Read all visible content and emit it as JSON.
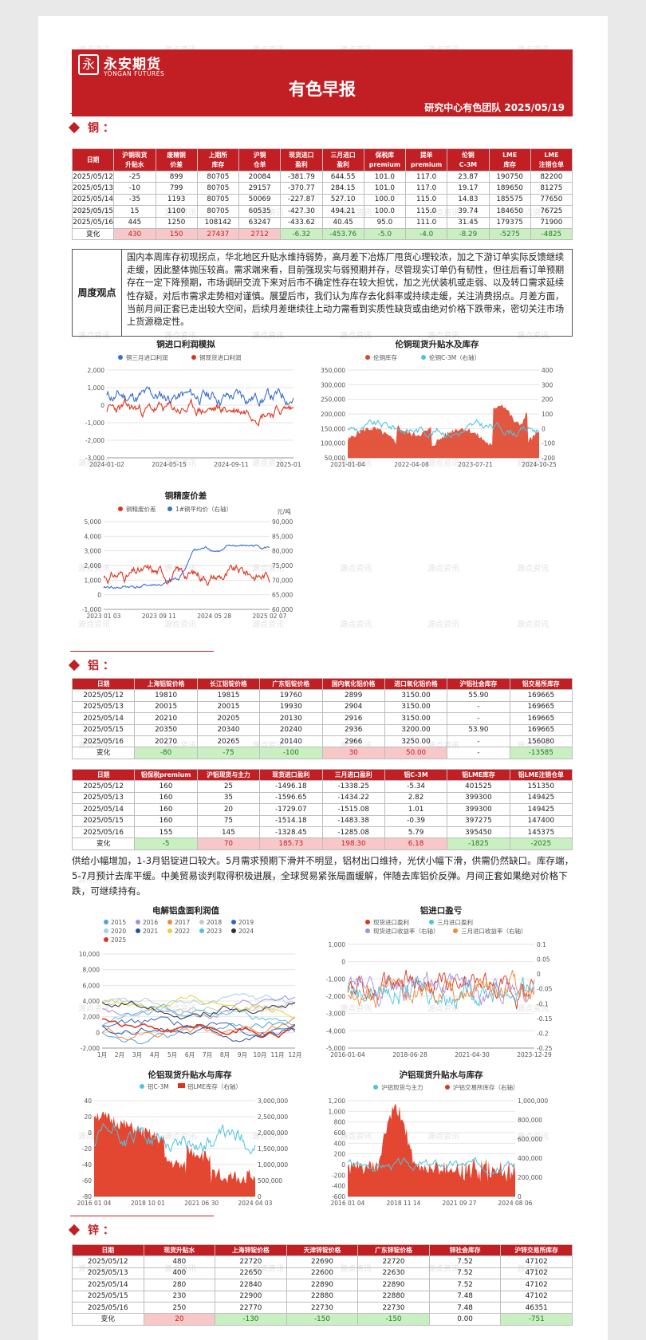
{
  "header": {
    "logo_cn": "永安期货",
    "logo_en": "YONGAN FUTURES",
    "title": "有色早报",
    "subtitle": "研究中心有色团队  2025/05/19"
  },
  "colors": {
    "brand_red": "#c21f24",
    "pos_bg": "#f8c8c8",
    "neg_bg": "#c9efc2"
  },
  "copper": {
    "section_title": "铜 ：",
    "headers": [
      "日期",
      "沪铜现货\n升贴水",
      "废精铜\n价差",
      "上期所\n库存",
      "沪铜\n仓单",
      "现货进口\n盈利",
      "三月进口\n盈利",
      "保税库\npremium",
      "提单\npremium",
      "伦铜\nC-3M",
      "LME\n库存",
      "LME\n注销仓单"
    ],
    "rows": [
      [
        "2025/05/12",
        "-25",
        "899",
        "80705",
        "20084",
        "-381.79",
        "644.55",
        "101.0",
        "117.0",
        "23.87",
        "190750",
        "82200"
      ],
      [
        "2025/05/13",
        "-10",
        "799",
        "80705",
        "29157",
        "-370.77",
        "284.15",
        "101.0",
        "117.0",
        "19.17",
        "189650",
        "81275"
      ],
      [
        "2025/05/14",
        "-35",
        "1193",
        "80705",
        "50069",
        "-227.87",
        "527.10",
        "100.0",
        "115.0",
        "14.83",
        "185575",
        "77650"
      ],
      [
        "2025/05/15",
        "15",
        "1100",
        "80705",
        "60535",
        "-427.30",
        "494.21",
        "100.0",
        "115.0",
        "39.74",
        "184650",
        "76725"
      ],
      [
        "2025/05/16",
        "445",
        "1250",
        "108142",
        "63247",
        "-433.62",
        "40.45",
        "95.0",
        "111.0",
        "31.45",
        "179375",
        "71900"
      ]
    ],
    "change_label": "变化",
    "change": [
      "430",
      "150",
      "27437",
      "2712",
      "-6.32",
      "-453.76",
      "-5.0",
      "-4.0",
      "-8.29",
      "-5275",
      "-4825"
    ],
    "view_label": "周度观点",
    "view_text": "国内本周库存初现拐点，华北地区升贴水维持弱势，高月差下冶炼厂甩货心理较浓，加之下游订单实际反馈继续走缓，因此整体抛压较高。需求端来看，目前强现实与弱预期并存，尽管现实订单仍有韧性，但往后看订单预期存在一定下降预期，市场调研交流下来对后市不确定性存在较大担忧，加之光伏装机或走弱、以及转口需求延续性存疑，对后市需求走势相对谨慎。展望后市，我们认为库存去化斜率或持续走缓，关注消费拐点。月差方面，当前月间正套已走出较大空间，后续月差继续往上动力需看到实质性缺货或由绝对价格下跌带来，密切关注市场上货源稳定性。"
  },
  "charts": {
    "cu_import": {
      "title": "铜进口利润模拟",
      "legend": [
        "铜三月进口利润",
        "铜现货进口利润"
      ],
      "series_colors": [
        "#3b6fd0",
        "#e0331b"
      ],
      "yticks": [
        "2,000",
        "1,000",
        "0",
        "-1,000",
        "-2,000",
        "-3,000"
      ],
      "xticks": [
        "2024-01-02",
        "2024-05-15",
        "2024-09-11",
        "2025-01-17"
      ]
    },
    "cu_lme": {
      "title": "伦铜现货升贴水及库存",
      "legend": [
        "伦铜库存",
        "伦铜C-3M（右轴）"
      ],
      "series_colors": [
        "#e0442b",
        "#4ec3e0"
      ],
      "yticks_left": [
        "350,000",
        "300,000",
        "250,000",
        "200,000",
        "150,000",
        "100,000",
        "50,000"
      ],
      "yticks_right": [
        "400",
        "300",
        "200",
        "100",
        "0",
        "-100",
        "-200"
      ],
      "xticks": [
        "2021-01-04",
        "2022-04-08",
        "2023-07-21",
        "2024-10-25"
      ]
    },
    "cu_scrap": {
      "title": "铜精废价差",
      "legend": [
        "铜精废价差",
        "1#铜平均价（右轴）"
      ],
      "unit_right": "元/吨",
      "series_colors": [
        "#e0331b",
        "#3b6fd0"
      ],
      "yticks_left": [
        "5,000",
        "4,000",
        "3,000",
        "2,000",
        "1,000",
        "0",
        "-1,000"
      ],
      "yticks_right": [
        "90,000",
        "85,000",
        "80,000",
        "75,000",
        "70,000",
        "65,000",
        "60,000"
      ],
      "xticks": [
        "2023 01 03",
        "2023 09 11",
        "2024 05 28",
        "2025 02 07"
      ]
    },
    "al_margin": {
      "title": "电解铝盘面利润值",
      "legend": [
        "2015",
        "2016",
        "2017",
        "2018",
        "2019",
        "2020",
        "2021",
        "2022",
        "2023",
        "2024",
        "2025"
      ],
      "series_colors": [
        "#4ea3e0",
        "#a98ed8",
        "#ef8a3a",
        "#c7c7c7",
        "#2f66c3",
        "#9fd3e8",
        "#2a4fa0",
        "#e8d036",
        "#58c0d8",
        "#333333",
        "#e0331b"
      ],
      "yticks": [
        "10,000",
        "8,000",
        "6,000",
        "4,000",
        "2,000",
        "0",
        "-2,000"
      ],
      "xticks": [
        "1月",
        "2月",
        "3月",
        "4月",
        "5月",
        "6月",
        "7月",
        "8月",
        "9月",
        "10月",
        "11月",
        "12月"
      ]
    },
    "al_import": {
      "title": "铝进口盈亏",
      "legend": [
        "现货进口盈利",
        "三月进口盈利",
        "现货进口收益率（右轴）",
        "三月进口收益率（右轴）"
      ],
      "series_colors": [
        "#e0331b",
        "#4ec3e0",
        "#a98ed8",
        "#ef8a3a"
      ],
      "yticks_left": [
        "1,000",
        "0",
        "-1,000",
        "-2,000",
        "-3,000",
        "-4,000",
        "-5,000"
      ],
      "yticks_right": [
        "0.1",
        "0.05",
        "0",
        "-0.05",
        "-0.1",
        "-0.15",
        "-0.2",
        "-0.25"
      ],
      "xticks": [
        "2016-01-04",
        "2018-06-28",
        "2021-04-30",
        "2023-12-29"
      ]
    },
    "al_lme": {
      "title": "伦铝现货升贴水与库存",
      "legend": [
        "铝C-3M",
        "铝LME库存（右轴）"
      ],
      "series_colors": [
        "#4ec3e0",
        "#e0331b"
      ],
      "yticks_left": [
        "40",
        "20",
        "0",
        "-20",
        "-40",
        "-60",
        "-80"
      ],
      "yticks_right": [
        "3,000,000",
        "2,500,000",
        "2,000,000",
        "1,500,000",
        "1,000,000",
        "500,000",
        "0"
      ],
      "xticks": [
        "2016 01 04",
        "2018 10 01",
        "2021 06 30",
        "2024 04 03"
      ]
    },
    "al_shfe": {
      "title": "沪铝现货升贴水与库存",
      "legend": [
        "沪铝现货与主力",
        "沪铝交易所库存（右轴）"
      ],
      "series_colors": [
        "#4ec3e0",
        "#e0331b"
      ],
      "yticks_left": [
        "1,200",
        "1,000",
        "800",
        "600",
        "400",
        "200",
        "0",
        "-200",
        "-400",
        "-600"
      ],
      "yticks_right": [
        "1,000,000",
        "800,000",
        "600,000",
        "400,000",
        "200,000",
        "0"
      ],
      "xticks": [
        "2016 01 04",
        "2018 11 14",
        "2021 09 27",
        "2024 08 06"
      ]
    }
  },
  "aluminum": {
    "section_title": "铝 ：",
    "t1_headers": [
      "日期",
      "上海铝锭价格",
      "长江铝锭价格",
      "广东铝锭价格",
      "国内氧化铝价格",
      "进口氧化铝价格",
      "沪铝社会库存",
      "铝交易所库存"
    ],
    "t1_rows": [
      [
        "2025/05/12",
        "19810",
        "19815",
        "19760",
        "2899",
        "3150.00",
        "55.90",
        "169665"
      ],
      [
        "2025/05/13",
        "20015",
        "20015",
        "19930",
        "2904",
        "3150.00",
        "-",
        "169665"
      ],
      [
        "2025/05/14",
        "20210",
        "20205",
        "20130",
        "2916",
        "3150.00",
        "-",
        "169665"
      ],
      [
        "2025/05/15",
        "20350",
        "20340",
        "20240",
        "2936",
        "3200.00",
        "53.90",
        "169665"
      ],
      [
        "2025/05/16",
        "20270",
        "20265",
        "20140",
        "2966",
        "3250.00",
        "-",
        "156080"
      ]
    ],
    "t1_change": [
      "-80",
      "-75",
      "-100",
      "30",
      "50.00",
      "-",
      "-13585"
    ],
    "t2_headers": [
      "日期",
      "铝保税premium",
      "沪铝现货与主力",
      "现货进口盈利",
      "三月进口盈利",
      "铝C-3M",
      "铝LME库存",
      "铝LME注销仓单"
    ],
    "t2_rows": [
      [
        "2025/05/12",
        "160",
        "25",
        "-1496.18",
        "-1338.25",
        "-5.34",
        "401525",
        "151350"
      ],
      [
        "2025/05/13",
        "160",
        "35",
        "-1596.65",
        "-1434.22",
        "2.82",
        "399300",
        "149425"
      ],
      [
        "2025/05/14",
        "160",
        "20",
        "-1729.07",
        "-1515.08",
        "1.01",
        "399300",
        "149425"
      ],
      [
        "2025/05/15",
        "160",
        "75",
        "-1514.18",
        "-1483.38",
        "-0.39",
        "397275",
        "147400"
      ],
      [
        "2025/05/16",
        "155",
        "145",
        "-1328.45",
        "-1285.08",
        "5.79",
        "395450",
        "145375"
      ]
    ],
    "t2_change": [
      "-5",
      "70",
      "185.73",
      "198.30",
      "6.18",
      "-1825",
      "-2025"
    ],
    "change_label": "变化",
    "view_text": "供给小幅增加，1-3月铝锭进口较大。5月需求预期下滑并不明显，铝材出口维持，光伏小幅下滑，供需仍然缺口。库存端，5-7月预计去库平缓。中美贸易谈判取得积极进展，全球贸易紧张局面缓解，伴随去库铝价反弹。月间正套如果绝对价格下跌，可继续持有。"
  },
  "zinc": {
    "section_title": "锌 ：",
    "headers": [
      "日期",
      "现货升贴水",
      "上海锌锭价格",
      "天津锌锭价格",
      "广东锌锭价格",
      "锌社会库存",
      "沪锌交易所库存"
    ],
    "rows": [
      [
        "2025/05/12",
        "480",
        "22720",
        "22690",
        "22720",
        "7.52",
        "47102"
      ],
      [
        "2025/05/13",
        "400",
        "22650",
        "22600",
        "22630",
        "7.52",
        "47102"
      ],
      [
        "2025/05/14",
        "280",
        "22840",
        "22890",
        "22890",
        "7.52",
        "47102"
      ],
      [
        "2025/05/15",
        "230",
        "22900",
        "22880",
        "22880",
        "7.48",
        "47102"
      ],
      [
        "2025/05/16",
        "250",
        "22770",
        "22730",
        "22730",
        "7.48",
        "46351"
      ]
    ],
    "change_label": "变化",
    "change": [
      "20",
      "-130",
      "-150",
      "-150",
      "0.00",
      "-751"
    ]
  },
  "watermark": "源点资讯"
}
